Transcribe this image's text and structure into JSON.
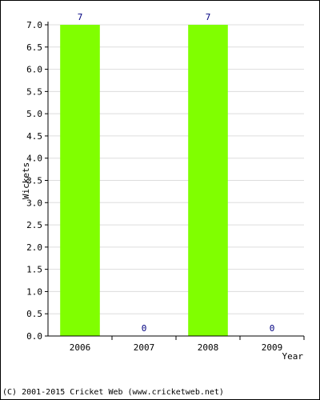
{
  "chart_data": {
    "type": "bar",
    "categories": [
      "2006",
      "2007",
      "2008",
      "2009"
    ],
    "values": [
      7,
      0,
      7,
      0
    ],
    "data_labels": [
      "7",
      "0",
      "7",
      "0"
    ],
    "xlabel": "Year",
    "ylabel": "Wickets",
    "ylim": [
      0,
      7
    ],
    "yticks": [
      "0.0",
      "0.5",
      "1.0",
      "1.5",
      "2.0",
      "2.5",
      "3.0",
      "3.5",
      "4.0",
      "4.5",
      "5.0",
      "5.5",
      "6.0",
      "6.5",
      "7.0"
    ],
    "grid": true,
    "bar_color": "#80ff00",
    "label_color": "#000080",
    "grid_color": "#dddddd"
  },
  "footer": {
    "copyright": "(C) 2001-2015 Cricket Web (www.cricketweb.net)"
  }
}
